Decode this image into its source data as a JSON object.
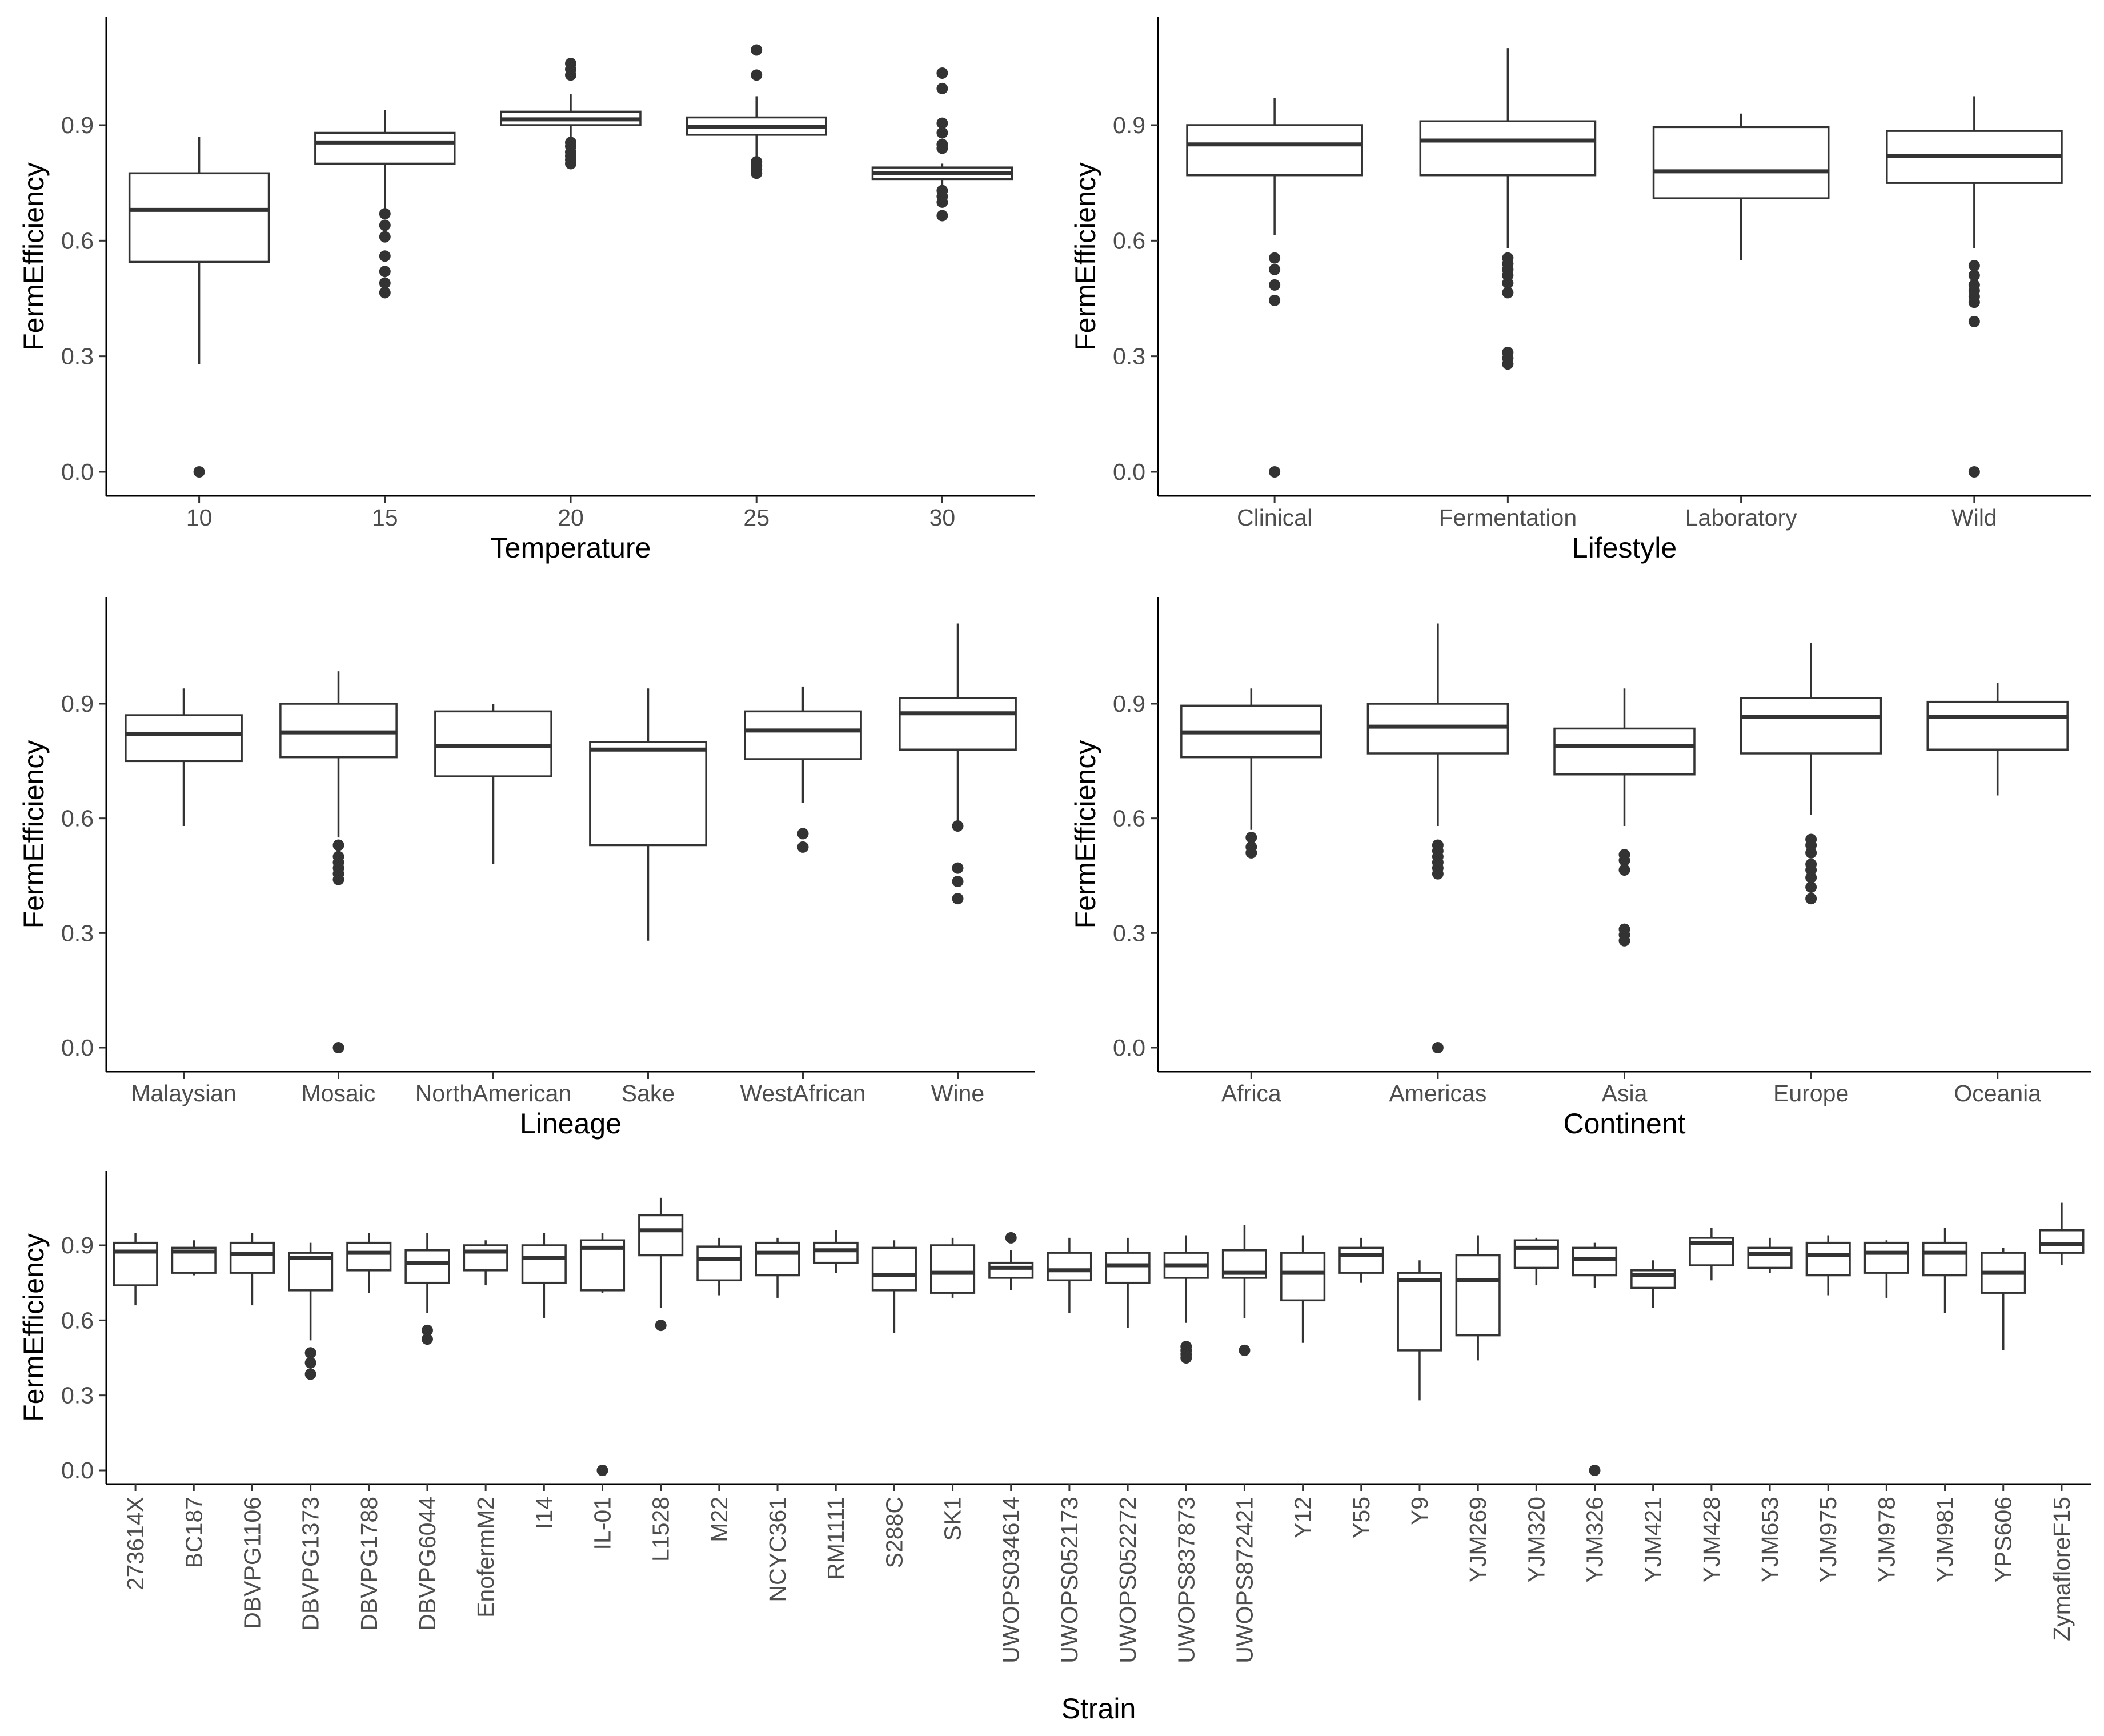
{
  "figure": {
    "ylabel": "FermEfficiency",
    "yticks": [
      0.0,
      0.3,
      0.6,
      0.9
    ],
    "ytick_labels": [
      "0.0",
      "0.3",
      "0.6",
      "0.9"
    ],
    "colors": {
      "box_fill": "#ffffff",
      "stroke": "#333333",
      "tick_text": "#4d4d4d",
      "axis": "#000000"
    }
  },
  "chart_data": [
    {
      "type": "box",
      "id": "temperature",
      "xlabel": "Temperature",
      "ylabel": "FermEfficiency",
      "ylim": [
        -0.04,
        1.14
      ],
      "categories": [
        "10",
        "15",
        "20",
        "25",
        "30"
      ],
      "boxes": [
        {
          "q1": 0.545,
          "median": 0.68,
          "q3": 0.775,
          "whisker_low": 0.28,
          "whisker_high": 0.87,
          "outliers": [
            0.0
          ]
        },
        {
          "q1": 0.8,
          "median": 0.855,
          "q3": 0.88,
          "whisker_low": 0.68,
          "whisker_high": 0.94,
          "outliers": [
            0.465,
            0.49,
            0.52,
            0.56,
            0.61,
            0.64,
            0.67
          ]
        },
        {
          "q1": 0.9,
          "median": 0.915,
          "q3": 0.935,
          "whisker_low": 0.86,
          "whisker_high": 0.98,
          "outliers": [
            0.8,
            0.81,
            0.82,
            0.83,
            0.845,
            0.855,
            1.03,
            1.045,
            1.06
          ]
        },
        {
          "q1": 0.875,
          "median": 0.895,
          "q3": 0.92,
          "whisker_low": 0.81,
          "whisker_high": 0.975,
          "outliers": [
            0.775,
            0.785,
            0.795,
            0.805,
            1.03,
            1.095
          ]
        },
        {
          "q1": 0.76,
          "median": 0.775,
          "q3": 0.79,
          "whisker_low": 0.745,
          "whisker_high": 0.8,
          "outliers": [
            0.665,
            0.7,
            0.715,
            0.73,
            0.84,
            0.85,
            0.88,
            0.905,
            0.995,
            1.035
          ]
        }
      ]
    },
    {
      "type": "box",
      "id": "lifestyle",
      "xlabel": "Lifestyle",
      "ylabel": "FermEfficiency",
      "ylim": [
        -0.04,
        1.14
      ],
      "categories": [
        "Clinical",
        "Fermentation",
        "Laboratory",
        "Wild"
      ],
      "boxes": [
        {
          "q1": 0.77,
          "median": 0.85,
          "q3": 0.9,
          "whisker_low": 0.615,
          "whisker_high": 0.97,
          "outliers": [
            0.0,
            0.445,
            0.485,
            0.525,
            0.555
          ]
        },
        {
          "q1": 0.77,
          "median": 0.86,
          "q3": 0.91,
          "whisker_low": 0.58,
          "whisker_high": 1.1,
          "outliers": [
            0.28,
            0.295,
            0.31,
            0.465,
            0.49,
            0.51,
            0.525,
            0.54,
            0.555
          ]
        },
        {
          "q1": 0.71,
          "median": 0.78,
          "q3": 0.895,
          "whisker_low": 0.55,
          "whisker_high": 0.93,
          "outliers": []
        },
        {
          "q1": 0.75,
          "median": 0.82,
          "q3": 0.885,
          "whisker_low": 0.58,
          "whisker_high": 0.975,
          "outliers": [
            0.0,
            0.39,
            0.44,
            0.455,
            0.47,
            0.485,
            0.51,
            0.535
          ]
        }
      ]
    },
    {
      "type": "box",
      "id": "lineage",
      "xlabel": "Lineage",
      "ylabel": "FermEfficiency",
      "ylim": [
        -0.04,
        1.14
      ],
      "categories": [
        "Malaysian",
        "Mosaic",
        "NorthAmerican",
        "Sake",
        "WestAfrican",
        "Wine"
      ],
      "boxes": [
        {
          "q1": 0.75,
          "median": 0.82,
          "q3": 0.87,
          "whisker_low": 0.58,
          "whisker_high": 0.94,
          "outliers": []
        },
        {
          "q1": 0.76,
          "median": 0.825,
          "q3": 0.9,
          "whisker_low": 0.55,
          "whisker_high": 0.985,
          "outliers": [
            0.0,
            0.44,
            0.455,
            0.47,
            0.485,
            0.5,
            0.53
          ]
        },
        {
          "q1": 0.71,
          "median": 0.79,
          "q3": 0.88,
          "whisker_low": 0.48,
          "whisker_high": 0.9,
          "outliers": []
        },
        {
          "q1": 0.53,
          "median": 0.78,
          "q3": 0.8,
          "whisker_low": 0.28,
          "whisker_high": 0.94,
          "outliers": []
        },
        {
          "q1": 0.755,
          "median": 0.83,
          "q3": 0.88,
          "whisker_low": 0.64,
          "whisker_high": 0.945,
          "outliers": [
            0.525,
            0.56
          ]
        },
        {
          "q1": 0.78,
          "median": 0.875,
          "q3": 0.915,
          "whisker_low": 0.59,
          "whisker_high": 1.11,
          "outliers": [
            0.39,
            0.435,
            0.47,
            0.58
          ]
        }
      ]
    },
    {
      "type": "box",
      "id": "continent",
      "xlabel": "Continent",
      "ylabel": "FermEfficiency",
      "ylim": [
        -0.04,
        1.14
      ],
      "categories": [
        "Africa",
        "Americas",
        "Asia",
        "Europe",
        "Oceania"
      ],
      "boxes": [
        {
          "q1": 0.76,
          "median": 0.825,
          "q3": 0.895,
          "whisker_low": 0.57,
          "whisker_high": 0.94,
          "outliers": [
            0.51,
            0.525,
            0.55
          ]
        },
        {
          "q1": 0.77,
          "median": 0.84,
          "q3": 0.9,
          "whisker_low": 0.58,
          "whisker_high": 1.11,
          "outliers": [
            0.0,
            0.455,
            0.47,
            0.485,
            0.5,
            0.515,
            0.53
          ]
        },
        {
          "q1": 0.715,
          "median": 0.79,
          "q3": 0.835,
          "whisker_low": 0.58,
          "whisker_high": 0.94,
          "outliers": [
            0.28,
            0.295,
            0.31,
            0.465,
            0.49,
            0.505
          ]
        },
        {
          "q1": 0.77,
          "median": 0.865,
          "q3": 0.915,
          "whisker_low": 0.61,
          "whisker_high": 1.06,
          "outliers": [
            0.39,
            0.42,
            0.445,
            0.465,
            0.48,
            0.51,
            0.53,
            0.545
          ]
        },
        {
          "q1": 0.78,
          "median": 0.865,
          "q3": 0.905,
          "whisker_low": 0.66,
          "whisker_high": 0.955,
          "outliers": []
        }
      ]
    },
    {
      "type": "box",
      "id": "strain",
      "xlabel": "Strain",
      "ylabel": "FermEfficiency",
      "ylim": [
        -0.04,
        1.14
      ],
      "categories": [
        "273614X",
        "BC187",
        "DBVPG1106",
        "DBVPG1373",
        "DBVPG1788",
        "DBVPG6044",
        "EnofermM2",
        "I14",
        "IL-01",
        "L1528",
        "M22",
        "NCYC361",
        "RM1111",
        "S288C",
        "SK1",
        "UWOPS034614",
        "UWOPS052173",
        "UWOPS052272",
        "UWOPS837873",
        "UWOPS872421",
        "Y12",
        "Y55",
        "Y9",
        "YJM269",
        "YJM320",
        "YJM326",
        "YJM421",
        "YJM428",
        "YJM653",
        "YJM975",
        "YJM978",
        "YJM981",
        "YPS606",
        "ZymafloreF15"
      ],
      "boxes": [
        {
          "q1": 0.74,
          "median": 0.875,
          "q3": 0.91,
          "whisker_low": 0.66,
          "whisker_high": 0.95,
          "outliers": []
        },
        {
          "q1": 0.79,
          "median": 0.875,
          "q3": 0.89,
          "whisker_low": 0.78,
          "whisker_high": 0.92,
          "outliers": []
        },
        {
          "q1": 0.79,
          "median": 0.865,
          "q3": 0.91,
          "whisker_low": 0.66,
          "whisker_high": 0.95,
          "outliers": []
        },
        {
          "q1": 0.72,
          "median": 0.85,
          "q3": 0.87,
          "whisker_low": 0.52,
          "whisker_high": 0.91,
          "outliers": [
            0.385,
            0.43,
            0.47
          ]
        },
        {
          "q1": 0.8,
          "median": 0.87,
          "q3": 0.91,
          "whisker_low": 0.71,
          "whisker_high": 0.95,
          "outliers": []
        },
        {
          "q1": 0.75,
          "median": 0.83,
          "q3": 0.88,
          "whisker_low": 0.63,
          "whisker_high": 0.95,
          "outliers": [
            0.525,
            0.56
          ]
        },
        {
          "q1": 0.8,
          "median": 0.875,
          "q3": 0.9,
          "whisker_low": 0.74,
          "whisker_high": 0.92,
          "outliers": []
        },
        {
          "q1": 0.75,
          "median": 0.85,
          "q3": 0.9,
          "whisker_low": 0.61,
          "whisker_high": 0.95,
          "outliers": []
        },
        {
          "q1": 0.72,
          "median": 0.89,
          "q3": 0.92,
          "whisker_low": 0.71,
          "whisker_high": 0.95,
          "outliers": [
            0.0
          ]
        },
        {
          "q1": 0.86,
          "median": 0.96,
          "q3": 1.02,
          "whisker_low": 0.65,
          "whisker_high": 1.09,
          "outliers": [
            0.58
          ]
        },
        {
          "q1": 0.76,
          "median": 0.845,
          "q3": 0.895,
          "whisker_low": 0.7,
          "whisker_high": 0.93,
          "outliers": []
        },
        {
          "q1": 0.78,
          "median": 0.87,
          "q3": 0.91,
          "whisker_low": 0.69,
          "whisker_high": 0.93,
          "outliers": []
        },
        {
          "q1": 0.83,
          "median": 0.88,
          "q3": 0.91,
          "whisker_low": 0.79,
          "whisker_high": 0.96,
          "outliers": []
        },
        {
          "q1": 0.72,
          "median": 0.78,
          "q3": 0.89,
          "whisker_low": 0.55,
          "whisker_high": 0.92,
          "outliers": []
        },
        {
          "q1": 0.71,
          "median": 0.79,
          "q3": 0.9,
          "whisker_low": 0.69,
          "whisker_high": 0.93,
          "outliers": []
        },
        {
          "q1": 0.77,
          "median": 0.81,
          "q3": 0.83,
          "whisker_low": 0.72,
          "whisker_high": 0.88,
          "outliers": [
            0.93
          ]
        },
        {
          "q1": 0.76,
          "median": 0.8,
          "q3": 0.87,
          "whisker_low": 0.63,
          "whisker_high": 0.93,
          "outliers": []
        },
        {
          "q1": 0.75,
          "median": 0.82,
          "q3": 0.87,
          "whisker_low": 0.57,
          "whisker_high": 0.93,
          "outliers": []
        },
        {
          "q1": 0.77,
          "median": 0.82,
          "q3": 0.87,
          "whisker_low": 0.59,
          "whisker_high": 0.94,
          "outliers": [
            0.45,
            0.465,
            0.48,
            0.495
          ]
        },
        {
          "q1": 0.77,
          "median": 0.79,
          "q3": 0.88,
          "whisker_low": 0.61,
          "whisker_high": 0.98,
          "outliers": [
            0.48
          ]
        },
        {
          "q1": 0.68,
          "median": 0.79,
          "q3": 0.87,
          "whisker_low": 0.51,
          "whisker_high": 0.94,
          "outliers": []
        },
        {
          "q1": 0.79,
          "median": 0.86,
          "q3": 0.89,
          "whisker_low": 0.75,
          "whisker_high": 0.93,
          "outliers": []
        },
        {
          "q1": 0.48,
          "median": 0.76,
          "q3": 0.79,
          "whisker_low": 0.28,
          "whisker_high": 0.84,
          "outliers": []
        },
        {
          "q1": 0.54,
          "median": 0.76,
          "q3": 0.86,
          "whisker_low": 0.44,
          "whisker_high": 0.94,
          "outliers": []
        },
        {
          "q1": 0.81,
          "median": 0.89,
          "q3": 0.92,
          "whisker_low": 0.74,
          "whisker_high": 0.93,
          "outliers": []
        },
        {
          "q1": 0.78,
          "median": 0.845,
          "q3": 0.89,
          "whisker_low": 0.73,
          "whisker_high": 0.91,
          "outliers": [
            0.0
          ]
        },
        {
          "q1": 0.73,
          "median": 0.78,
          "q3": 0.8,
          "whisker_low": 0.65,
          "whisker_high": 0.84,
          "outliers": []
        },
        {
          "q1": 0.82,
          "median": 0.91,
          "q3": 0.93,
          "whisker_low": 0.76,
          "whisker_high": 0.97,
          "outliers": []
        },
        {
          "q1": 0.81,
          "median": 0.865,
          "q3": 0.89,
          "whisker_low": 0.79,
          "whisker_high": 0.93,
          "outliers": []
        },
        {
          "q1": 0.78,
          "median": 0.86,
          "q3": 0.91,
          "whisker_low": 0.7,
          "whisker_high": 0.94,
          "outliers": []
        },
        {
          "q1": 0.79,
          "median": 0.87,
          "q3": 0.91,
          "whisker_low": 0.69,
          "whisker_high": 0.92,
          "outliers": []
        },
        {
          "q1": 0.78,
          "median": 0.87,
          "q3": 0.91,
          "whisker_low": 0.63,
          "whisker_high": 0.97,
          "outliers": []
        },
        {
          "q1": 0.71,
          "median": 0.79,
          "q3": 0.87,
          "whisker_low": 0.48,
          "whisker_high": 0.89,
          "outliers": []
        },
        {
          "q1": 0.87,
          "median": 0.905,
          "q3": 0.96,
          "whisker_low": 0.82,
          "whisker_high": 1.07,
          "outliers": []
        }
      ]
    }
  ]
}
